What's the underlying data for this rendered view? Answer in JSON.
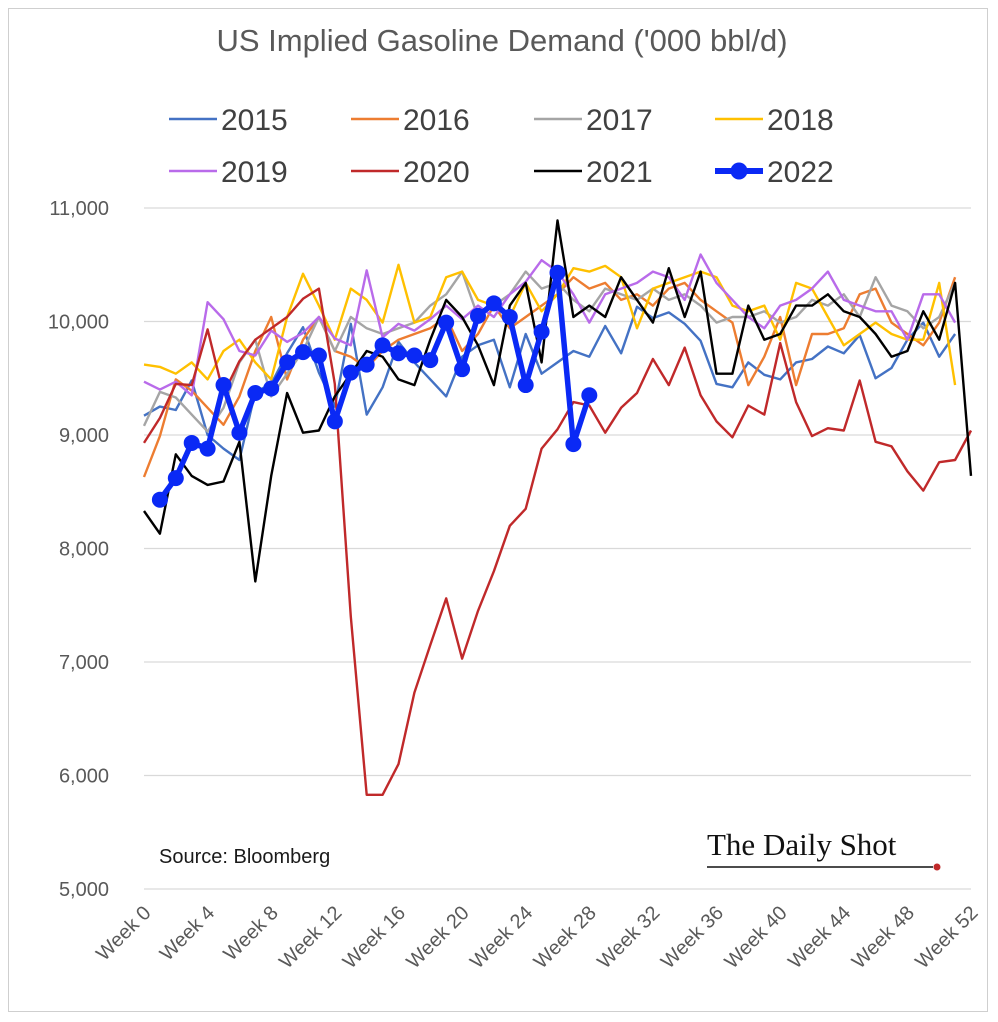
{
  "chart_data": {
    "type": "line",
    "title": "US Implied Gasoline Demand ('000 bbl/d)",
    "xlabel": "",
    "ylabel": "",
    "ylim": [
      5000,
      11000
    ],
    "yticks": [
      5000,
      6000,
      7000,
      8000,
      9000,
      10000,
      11000
    ],
    "ytick_labels": [
      "5,000",
      "6,000",
      "7,000",
      "8,000",
      "9,000",
      "10,000",
      "11,000"
    ],
    "xlim": [
      0,
      52
    ],
    "xticks": [
      0,
      4,
      8,
      12,
      16,
      20,
      24,
      28,
      32,
      36,
      40,
      44,
      48,
      52
    ],
    "xtick_labels": [
      "Week 0",
      "Week 4",
      "Week 8",
      "Week 12",
      "Week 16",
      "Week 20",
      "Week 24",
      "Week 28",
      "Week 32",
      "Week 36",
      "Week 40",
      "Week 44",
      "Week 48",
      "Week 52"
    ],
    "grid": "horizontal",
    "legend_position": "top",
    "series": [
      {
        "name": "2015",
        "color": "#4472C4",
        "start_week": 0,
        "values": [
          9170,
          9250,
          9220,
          9480,
          9000,
          8880,
          8780,
          9380,
          9450,
          9720,
          9950,
          9550,
          9250,
          9980,
          9180,
          9420,
          9820,
          9640,
          9490,
          9340,
          9690,
          9790,
          9840,
          9420,
          9890,
          9540,
          9640,
          9740,
          9690,
          9960,
          9720,
          10130,
          10030,
          10080,
          9980,
          9830,
          9450,
          9420,
          9640,
          9530,
          9490,
          9640,
          9670,
          9780,
          9720,
          9880,
          9500,
          9590,
          9840,
          9990,
          9690,
          9890
        ]
      },
      {
        "name": "2016",
        "color": "#ED7D31",
        "start_week": 0,
        "values": [
          8630,
          8990,
          9490,
          9390,
          9240,
          9090,
          9340,
          9740,
          10040,
          9490,
          9840,
          10040,
          9740,
          9690,
          9590,
          9740,
          9840,
          9890,
          9940,
          10040,
          9740,
          9890,
          10140,
          9940,
          10040,
          10140,
          10240,
          10390,
          10290,
          10340,
          10190,
          10240,
          10140,
          10290,
          10340,
          10190,
          10090,
          9990,
          9440,
          9690,
          10040,
          9440,
          9890,
          9890,
          9940,
          10240,
          10290,
          9990,
          9890,
          9790,
          9990,
          10390
        ]
      },
      {
        "name": "2017",
        "color": "#A5A5A5",
        "start_week": 0,
        "values": [
          9080,
          9380,
          9330,
          9180,
          9030,
          9240,
          9640,
          9840,
          9340,
          9540,
          9740,
          10040,
          9740,
          10040,
          9940,
          9890,
          9940,
          9990,
          10140,
          10240,
          10440,
          10040,
          10140,
          10240,
          10440,
          10290,
          10340,
          10190,
          10090,
          10290,
          10240,
          10190,
          10290,
          10190,
          10240,
          10140,
          9990,
          10040,
          10040,
          10090,
          9990,
          10040,
          10190,
          10140,
          10240,
          10040,
          10390,
          10140,
          10090,
          9940,
          10040,
          10340
        ]
      },
      {
        "name": "2018",
        "color": "#FFC000",
        "start_week": 0,
        "values": [
          9620,
          9600,
          9540,
          9640,
          9490,
          9740,
          9840,
          9640,
          9490,
          10040,
          10420,
          10140,
          9840,
          10290,
          10190,
          9990,
          10500,
          9990,
          10040,
          10390,
          10440,
          10190,
          10140,
          10040,
          10340,
          10090,
          10240,
          10470,
          10440,
          10490,
          10390,
          9940,
          10290,
          10340,
          10390,
          10440,
          10390,
          10140,
          10090,
          10140,
          9840,
          10340,
          10290,
          10040,
          9790,
          9890,
          9990,
          9890,
          9840,
          9840,
          10340,
          9440
        ]
      },
      {
        "name": "2019",
        "color": "#B96BEA",
        "start_week": 0,
        "values": [
          9470,
          9400,
          9470,
          9350,
          10170,
          10020,
          9740,
          9700,
          9920,
          9820,
          9900,
          10040,
          9850,
          9790,
          10450,
          9860,
          9980,
          9920,
          10020,
          10140,
          10020,
          10140,
          10040,
          10240,
          10350,
          10540,
          10440,
          10240,
          9990,
          10240,
          10290,
          10340,
          10440,
          10390,
          10190,
          10590,
          10340,
          10190,
          10040,
          9940,
          10140,
          10190,
          10290,
          10440,
          10190,
          10140,
          10090,
          10090,
          9840,
          10240,
          10240,
          9990
        ]
      },
      {
        "name": "2020",
        "color": "#C0292A",
        "start_week": 0,
        "values": [
          8930,
          9150,
          9450,
          9440,
          9930,
          9360,
          9650,
          9840,
          9940,
          10040,
          10200,
          10290,
          9450,
          7400,
          5830,
          5830,
          6100,
          6730,
          7150,
          7560,
          7030,
          7450,
          7800,
          8200,
          8350,
          8880,
          9050,
          9290,
          9260,
          9020,
          9240,
          9370,
          9670,
          9440,
          9770,
          9350,
          9120,
          8980,
          9260,
          9180,
          9810,
          9290,
          8990,
          9060,
          9040,
          9480,
          8940,
          8900,
          8680,
          8510,
          8760,
          8780,
          9040
        ]
      },
      {
        "name": "2021",
        "color": "#000000",
        "start_week": 0,
        "values": [
          8330,
          8130,
          8830,
          8640,
          8560,
          8590,
          8940,
          7710,
          8640,
          9370,
          9020,
          9040,
          9340,
          9540,
          9740,
          9690,
          9490,
          9440,
          9840,
          10190,
          10040,
          9790,
          9440,
          10140,
          10340,
          9640,
          10890,
          10040,
          10140,
          10040,
          10390,
          10190,
          9990,
          10470,
          10040,
          10440,
          9540,
          9540,
          10140,
          9840,
          9890,
          10140,
          10140,
          10240,
          10090,
          10040,
          9890,
          9690,
          9740,
          10090,
          9840,
          10340,
          8640
        ]
      },
      {
        "name": "2022",
        "color": "#0A29F5",
        "start_week": 1,
        "values": [
          8430,
          8620,
          8930,
          8880,
          9440,
          9020,
          9370,
          9410,
          9640,
          9730,
          9700,
          9120,
          9550,
          9620,
          9790,
          9720,
          9700,
          9660,
          9990,
          9580,
          10050,
          10160,
          10040,
          9440,
          9910,
          10430,
          8920,
          9350
        ]
      }
    ],
    "annotations": [
      "Source: Bloomberg"
    ],
    "brand": "The Daily Shot"
  }
}
